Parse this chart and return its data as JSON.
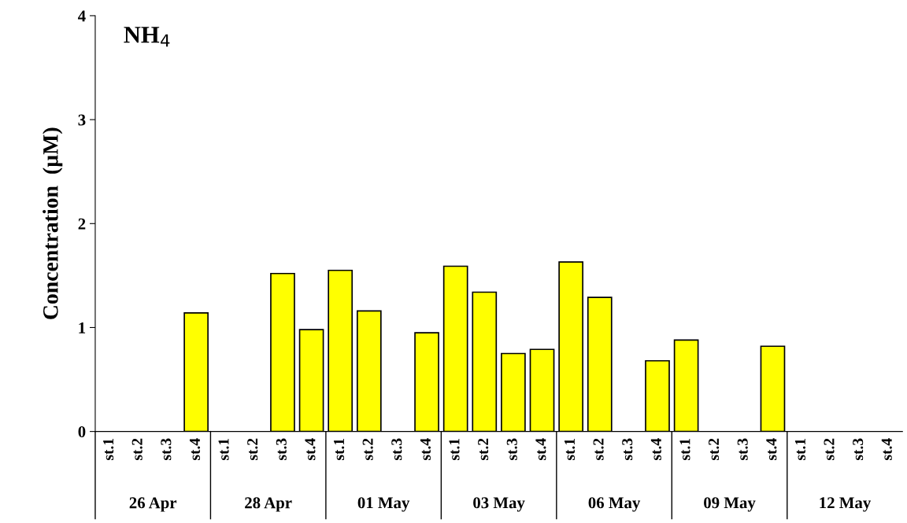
{
  "chart_data": {
    "type": "bar",
    "title": "NH$_{4}$",
    "ylabel": "Concentration  (µM)",
    "categories": [
      "st.1",
      "st.2",
      "st.3",
      "st.4",
      "st.1",
      "st.2",
      "st.3",
      "st.4",
      "st.1",
      "st.2",
      "st.3",
      "st.4",
      "st.1",
      "st.2",
      "st.3",
      "st.4",
      "st.1",
      "st.2",
      "st.3",
      "st.4",
      "st.1",
      "st.2",
      "st.3",
      "st.4",
      "st.1",
      "st.2",
      "st.3",
      "st.4"
    ],
    "values": [
      null,
      null,
      null,
      1.14,
      null,
      null,
      1.52,
      0.98,
      1.55,
      1.16,
      null,
      0.95,
      1.59,
      1.34,
      0.75,
      0.79,
      1.63,
      1.29,
      null,
      0.68,
      0.88,
      null,
      null,
      0.82,
      null,
      null,
      null,
      null
    ],
    "color": "#ffff00",
    "annotations": [
      "26 Apr",
      "28 Apr",
      "01 May",
      "03 May",
      "06 May",
      "09 May",
      "12 May"
    ],
    "ylim": [
      0,
      4
    ],
    "yticks": [
      0,
      1,
      2,
      3,
      4
    ],
    "grid": false
  }
}
